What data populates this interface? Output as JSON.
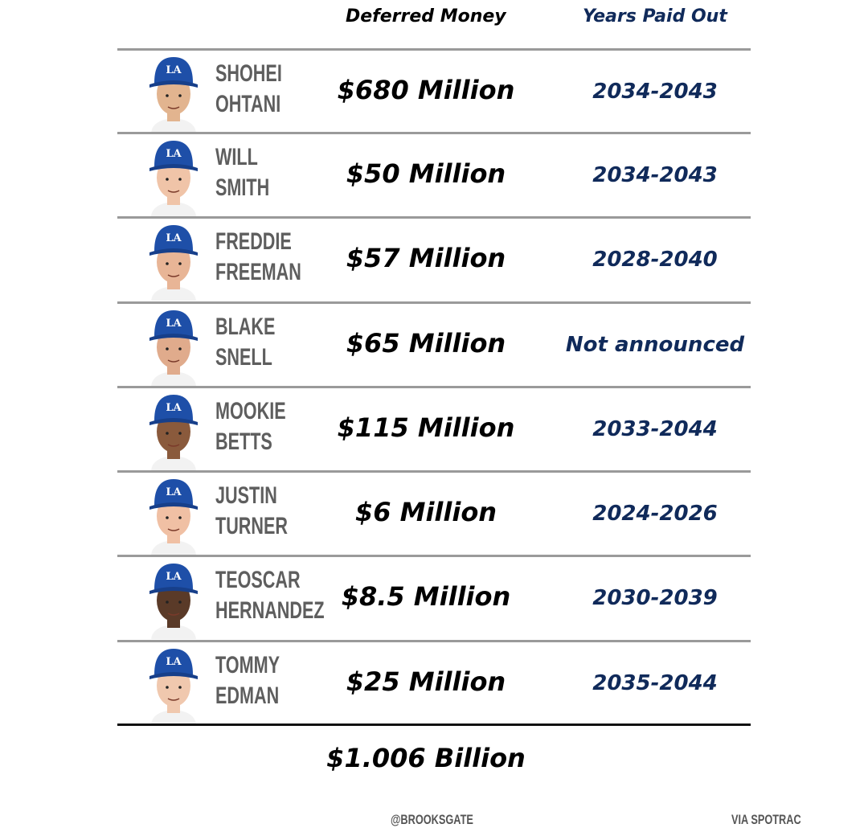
{
  "headers": {
    "money": "Deferred Money",
    "years": "Years Paid Out"
  },
  "colors": {
    "cap": "#1e4fa8",
    "years_text": "#102a5a",
    "name_text": "#5e5e5e"
  },
  "players": [
    {
      "first": "SHOHEI",
      "last": "OHTANI",
      "money": "$680 Million",
      "years": "2034-2043",
      "skin": "#e2b48f"
    },
    {
      "first": "WILL",
      "last": "SMITH",
      "money": "$50 Million",
      "years": "2034-2043",
      "skin": "#f0c4a8"
    },
    {
      "first": "FREDDIE",
      "last": "FREEMAN",
      "money": "$57 Million",
      "years": "2028-2040",
      "skin": "#e8b596"
    },
    {
      "first": "BLAKE",
      "last": "SNELL",
      "money": "$65 Million",
      "years": "Not announced",
      "skin": "#e0ab8c"
    },
    {
      "first": "MOOKIE",
      "last": "BETTS",
      "money": "$115 Million",
      "years": "2033-2044",
      "skin": "#8a5a3c"
    },
    {
      "first": "JUSTIN",
      "last": "TURNER",
      "money": "$6 Million",
      "years": "2024-2026",
      "skin": "#f0c0a4"
    },
    {
      "first": "TEOSCAR",
      "last": "HERNANDEZ",
      "money": "$8.5 Million",
      "years": "2030-2039",
      "skin": "#5a3a28"
    },
    {
      "first": "TOMMY",
      "last": "EDMAN",
      "money": "$25 Million",
      "years": "2035-2044",
      "skin": "#f0c8ae"
    }
  ],
  "total": "$1.006 Billion",
  "footer": {
    "handle": "@BROOKSGATE",
    "source": "VIA SPOTRAC"
  }
}
